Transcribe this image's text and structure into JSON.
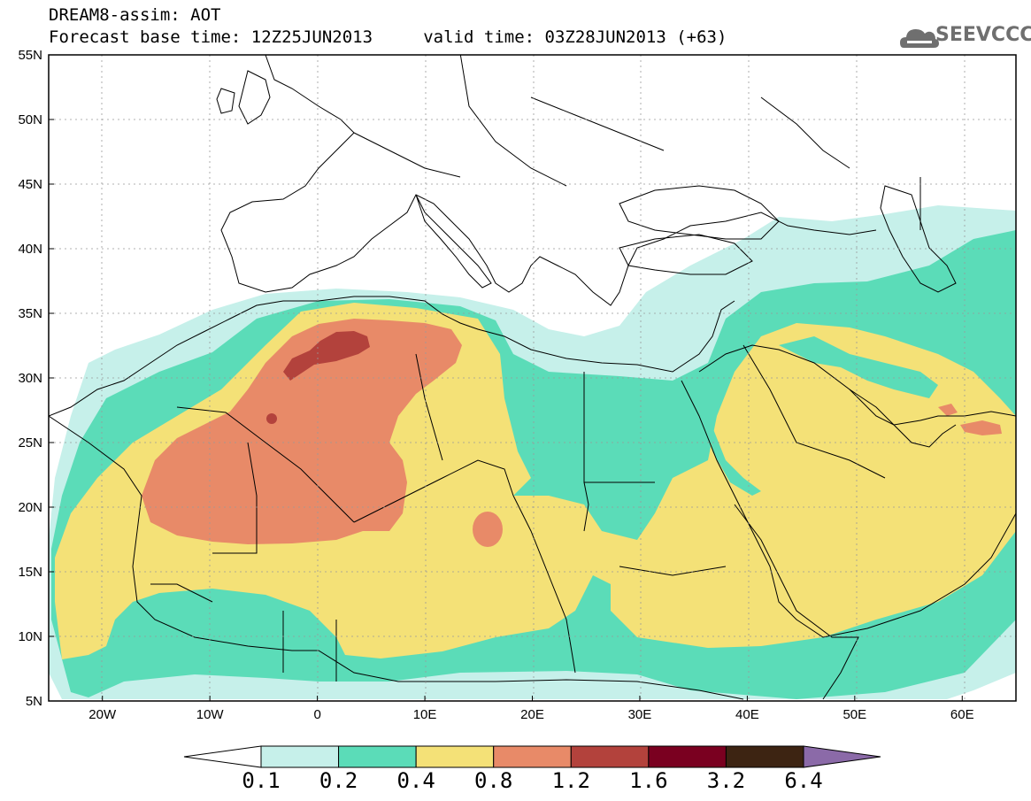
{
  "header": {
    "title_line1": "DREAM8-assim: AOT",
    "title_line2": "Forecast base time: 12Z25JUN2013     valid time: 03Z28JUN2013 (+63)"
  },
  "logo": {
    "text": "SEEVCCC",
    "icon": "cloud-icon"
  },
  "map": {
    "lat_labels": [
      "55N",
      "50N",
      "45N",
      "40N",
      "35N",
      "30N",
      "25N",
      "20N",
      "15N",
      "10N",
      "5N"
    ],
    "lon_labels": [
      "20W",
      "10W",
      "0",
      "10E",
      "20E",
      "30E",
      "40E",
      "50E",
      "60E"
    ],
    "lat_range": [
      5,
      55
    ],
    "lon_range": [
      -25,
      65
    ],
    "projection": "lat-lon",
    "colors": {
      "sea": "#ffffff",
      "coast": "#000000",
      "c1": "#c6f0ea",
      "c2": "#5bdcb8",
      "c3": "#f4e177",
      "c4": "#e88a68",
      "c5": "#b3423c",
      "c6": "#7a0020",
      "c7": "#3d2412",
      "c8": "#8b6aa8"
    }
  },
  "colorbar": {
    "levels": [
      "0.1",
      "0.2",
      "0.4",
      "0.8",
      "1.2",
      "1.6",
      "3.2",
      "6.4"
    ],
    "colors": [
      "#c6f0ea",
      "#5bdcb8",
      "#f4e177",
      "#e88a68",
      "#b3423c",
      "#7a0020",
      "#3d2412"
    ],
    "under_color": "#ffffff",
    "over_color": "#8b6aa8"
  }
}
